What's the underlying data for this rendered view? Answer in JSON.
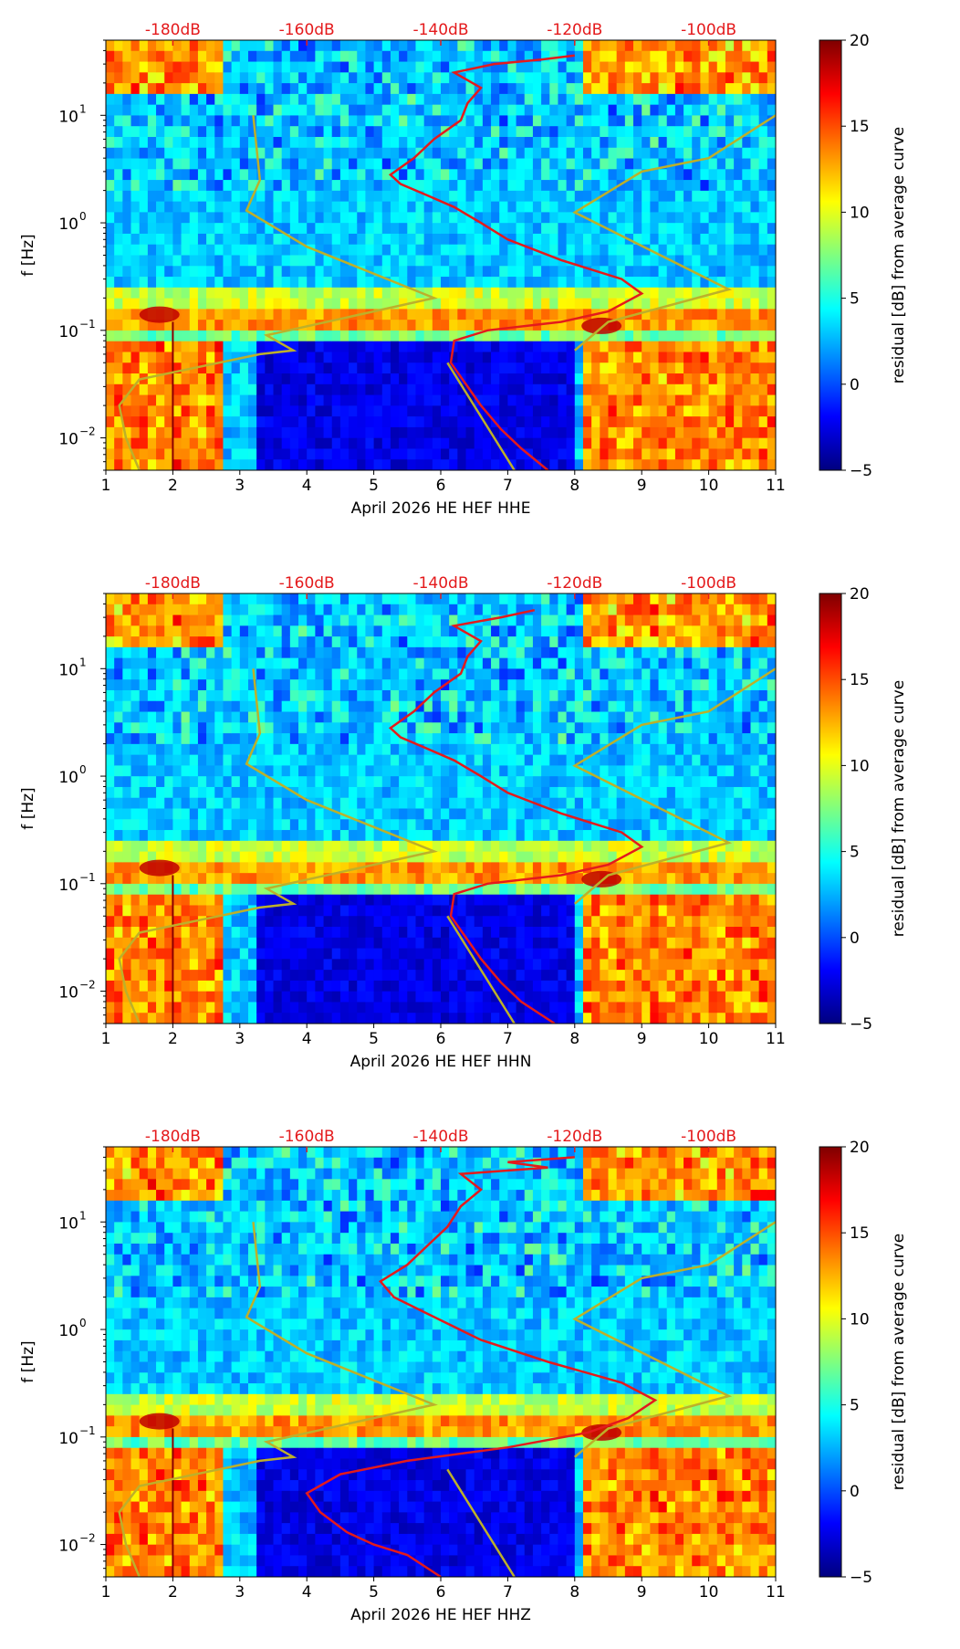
{
  "colors": {
    "psd_curve": "#e41a1c",
    "model_curve": "#bdb02a",
    "top_label": "#e41a1c",
    "jet_stops": [
      "#00007f",
      "#0000ff",
      "#007fff",
      "#00ffff",
      "#7fff7f",
      "#ffff00",
      "#ff7f00",
      "#ff0000",
      "#7f0000"
    ]
  },
  "chart_data": [
    {
      "type": "heatmap",
      "channel": "HHE",
      "xlabel": "April 2026 HE HEF  HHE",
      "ylabel": "f [Hz]",
      "xlim": [
        1,
        11
      ],
      "xticks": [
        "1",
        "2",
        "3",
        "4",
        "5",
        "6",
        "7",
        "8",
        "9",
        "10",
        "11"
      ],
      "ylim_hz": [
        0.005,
        50
      ],
      "yticks": [
        {
          "base": "10",
          "exp": "−2",
          "value": 0.01
        },
        {
          "base": "10",
          "exp": "−1",
          "value": 0.1
        },
        {
          "base": "10",
          "exp": "0",
          "value": 1
        },
        {
          "base": "10",
          "exp": "1",
          "value": 10
        }
      ],
      "top_axis_labels": [
        "-180dB",
        "-160dB",
        "-140dB",
        "-120dB",
        "-100dB"
      ],
      "top_axis_db": [
        -180,
        -160,
        -140,
        -120,
        -100
      ],
      "top_axis_range_db": [
        -190,
        -90
      ],
      "colorbar": {
        "label": "residual [dB] from average curve",
        "range": [
          -5,
          20
        ],
        "ticks": [
          "−5",
          "0",
          "5",
          "10",
          "15",
          "20"
        ]
      },
      "red_curve_day_units": [
        [
          7.6,
          0.005
        ],
        [
          7.2,
          0.008
        ],
        [
          6.9,
          0.012
        ],
        [
          6.6,
          0.02
        ],
        [
          6.4,
          0.03
        ],
        [
          6.15,
          0.05
        ],
        [
          6.2,
          0.08
        ],
        [
          6.7,
          0.1
        ],
        [
          7.8,
          0.12
        ],
        [
          8.5,
          0.15
        ],
        [
          9.0,
          0.22
        ],
        [
          8.7,
          0.3
        ],
        [
          7.8,
          0.45
        ],
        [
          7.0,
          0.7
        ],
        [
          6.6,
          1.0
        ],
        [
          6.2,
          1.4
        ],
        [
          5.8,
          1.8
        ],
        [
          5.4,
          2.3
        ],
        [
          5.25,
          2.8
        ],
        [
          5.6,
          4
        ],
        [
          5.9,
          6
        ],
        [
          6.3,
          9
        ],
        [
          6.4,
          13
        ],
        [
          6.6,
          18
        ],
        [
          6.2,
          25
        ],
        [
          6.8,
          30
        ],
        [
          7.5,
          33
        ],
        [
          8.0,
          36
        ]
      ],
      "model_curve_day_units": [
        [
          1.5,
          0.005
        ],
        [
          1.3,
          0.01
        ],
        [
          1.2,
          0.02
        ],
        [
          1.5,
          0.035
        ],
        [
          3.3,
          0.06
        ],
        [
          3.8,
          0.065
        ],
        [
          3.4,
          0.09
        ],
        [
          5.9,
          0.2
        ],
        [
          4.0,
          0.6
        ],
        [
          3.1,
          1.3
        ],
        [
          3.3,
          2.5
        ],
        [
          3.2,
          10
        ],
        [
          8.0,
          0.065
        ],
        [
          8.5,
          0.12
        ],
        [
          10.3,
          0.24
        ],
        [
          8.0,
          1.25
        ],
        [
          9.0,
          3
        ],
        [
          10.0,
          4
        ],
        [
          11.0,
          10
        ],
        [
          6.1,
          0.05
        ],
        [
          7.1,
          0.005
        ]
      ]
    },
    {
      "type": "heatmap",
      "channel": "HHN",
      "xlabel": "April 2026 HE HEF  HHN",
      "ylabel": "f [Hz]",
      "xlim": [
        1,
        11
      ],
      "xticks": [
        "1",
        "2",
        "3",
        "4",
        "5",
        "6",
        "7",
        "8",
        "9",
        "10",
        "11"
      ],
      "ylim_hz": [
        0.005,
        50
      ],
      "yticks": [
        {
          "base": "10",
          "exp": "−2",
          "value": 0.01
        },
        {
          "base": "10",
          "exp": "−1",
          "value": 0.1
        },
        {
          "base": "10",
          "exp": "0",
          "value": 1
        },
        {
          "base": "10",
          "exp": "1",
          "value": 10
        }
      ],
      "top_axis_labels": [
        "-180dB",
        "-160dB",
        "-140dB",
        "-120dB",
        "-100dB"
      ],
      "top_axis_db": [
        -180,
        -160,
        -140,
        -120,
        -100
      ],
      "top_axis_range_db": [
        -190,
        -90
      ],
      "colorbar": {
        "label": "residual [dB] from average curve",
        "range": [
          -5,
          20
        ],
        "ticks": [
          "−5",
          "0",
          "5",
          "10",
          "15",
          "20"
        ]
      },
      "red_curve_day_units": [
        [
          7.7,
          0.005
        ],
        [
          7.2,
          0.008
        ],
        [
          6.9,
          0.012
        ],
        [
          6.6,
          0.02
        ],
        [
          6.4,
          0.03
        ],
        [
          6.15,
          0.05
        ],
        [
          6.2,
          0.08
        ],
        [
          6.7,
          0.1
        ],
        [
          7.8,
          0.12
        ],
        [
          8.5,
          0.15
        ],
        [
          9.0,
          0.22
        ],
        [
          8.7,
          0.3
        ],
        [
          7.8,
          0.45
        ],
        [
          7.0,
          0.7
        ],
        [
          6.6,
          1.0
        ],
        [
          6.2,
          1.4
        ],
        [
          5.8,
          1.8
        ],
        [
          5.4,
          2.3
        ],
        [
          5.25,
          2.8
        ],
        [
          5.6,
          4
        ],
        [
          5.9,
          6
        ],
        [
          6.3,
          9
        ],
        [
          6.4,
          13
        ],
        [
          6.6,
          18
        ],
        [
          6.2,
          25
        ],
        [
          6.9,
          30
        ],
        [
          7.4,
          35
        ]
      ],
      "model_curve_day_units": [
        [
          1.5,
          0.005
        ],
        [
          1.3,
          0.01
        ],
        [
          1.2,
          0.02
        ],
        [
          1.5,
          0.035
        ],
        [
          3.3,
          0.06
        ],
        [
          3.8,
          0.065
        ],
        [
          3.4,
          0.09
        ],
        [
          5.9,
          0.2
        ],
        [
          4.0,
          0.6
        ],
        [
          3.1,
          1.3
        ],
        [
          3.3,
          2.5
        ],
        [
          3.2,
          10
        ],
        [
          8.0,
          0.065
        ],
        [
          8.5,
          0.12
        ],
        [
          10.3,
          0.24
        ],
        [
          8.0,
          1.25
        ],
        [
          9.0,
          3
        ],
        [
          10.0,
          4
        ],
        [
          11.0,
          10
        ],
        [
          6.1,
          0.05
        ],
        [
          7.1,
          0.005
        ]
      ]
    },
    {
      "type": "heatmap",
      "channel": "HHZ",
      "xlabel": "April 2026 HE HEF  HHZ",
      "ylabel": "f [Hz]",
      "xlim": [
        1,
        11
      ],
      "xticks": [
        "1",
        "2",
        "3",
        "4",
        "5",
        "6",
        "7",
        "8",
        "9",
        "10",
        "11"
      ],
      "ylim_hz": [
        0.005,
        50
      ],
      "yticks": [
        {
          "base": "10",
          "exp": "−2",
          "value": 0.01
        },
        {
          "base": "10",
          "exp": "−1",
          "value": 0.1
        },
        {
          "base": "10",
          "exp": "0",
          "value": 1
        },
        {
          "base": "10",
          "exp": "1",
          "value": 10
        }
      ],
      "top_axis_labels": [
        "-180dB",
        "-160dB",
        "-140dB",
        "-120dB",
        "-100dB"
      ],
      "top_axis_db": [
        -180,
        -160,
        -140,
        -120,
        -100
      ],
      "top_axis_range_db": [
        -190,
        -90
      ],
      "colorbar": {
        "label": "residual [dB] from average curve",
        "range": [
          -5,
          20
        ],
        "ticks": [
          "−5",
          "0",
          "5",
          "10",
          "15",
          "20"
        ]
      },
      "red_curve_day_units": [
        [
          6.0,
          0.005
        ],
        [
          5.5,
          0.008
        ],
        [
          5.0,
          0.01
        ],
        [
          4.6,
          0.013
        ],
        [
          4.2,
          0.02
        ],
        [
          4.0,
          0.03
        ],
        [
          4.5,
          0.045
        ],
        [
          5.5,
          0.06
        ],
        [
          7.0,
          0.08
        ],
        [
          8.2,
          0.11
        ],
        [
          8.8,
          0.15
        ],
        [
          9.2,
          0.22
        ],
        [
          8.7,
          0.32
        ],
        [
          7.6,
          0.5
        ],
        [
          6.6,
          0.8
        ],
        [
          5.8,
          1.4
        ],
        [
          5.3,
          2.0
        ],
        [
          5.1,
          2.8
        ],
        [
          5.5,
          4
        ],
        [
          5.8,
          6
        ],
        [
          6.1,
          9
        ],
        [
          6.3,
          14
        ],
        [
          6.6,
          20
        ],
        [
          6.3,
          28
        ],
        [
          7.6,
          32
        ],
        [
          7.0,
          36
        ],
        [
          8.0,
          40
        ]
      ],
      "model_curve_day_units": [
        [
          1.5,
          0.005
        ],
        [
          1.3,
          0.01
        ],
        [
          1.2,
          0.02
        ],
        [
          1.5,
          0.035
        ],
        [
          3.3,
          0.06
        ],
        [
          3.8,
          0.065
        ],
        [
          3.4,
          0.09
        ],
        [
          5.9,
          0.2
        ],
        [
          4.0,
          0.6
        ],
        [
          3.1,
          1.3
        ],
        [
          3.3,
          2.5
        ],
        [
          3.2,
          10
        ],
        [
          8.0,
          0.065
        ],
        [
          8.5,
          0.12
        ],
        [
          10.3,
          0.24
        ],
        [
          8.0,
          1.25
        ],
        [
          9.0,
          3
        ],
        [
          10.0,
          4
        ],
        [
          11.0,
          10
        ],
        [
          6.1,
          0.05
        ],
        [
          7.1,
          0.005
        ]
      ]
    }
  ]
}
